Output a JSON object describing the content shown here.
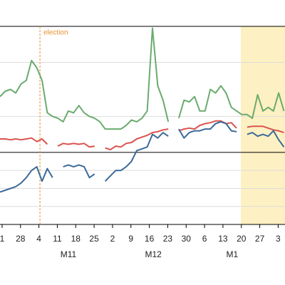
{
  "chart_data": {
    "type": "line",
    "annotation": "election",
    "annotation_x": 15.2,
    "shaded_span": [
      91.6,
      108.4
    ],
    "xlim": [
      0,
      108.4
    ],
    "ylim": [
      -4,
      7
    ],
    "zero_line": 0,
    "grid_lines": [
      -3,
      -2,
      -1,
      2,
      5
    ],
    "xticks": [
      {
        "value": 0.8,
        "label": "1"
      },
      {
        "value": 7.8,
        "label": "28"
      },
      {
        "value": 14.8,
        "label": "4"
      },
      {
        "value": 21.8,
        "label": "11"
      },
      {
        "value": 28.8,
        "label": "18"
      },
      {
        "value": 35.8,
        "label": "25"
      },
      {
        "value": 42.8,
        "label": "2"
      },
      {
        "value": 49.8,
        "label": "9"
      },
      {
        "value": 56.8,
        "label": "16"
      },
      {
        "value": 63.8,
        "label": "23"
      },
      {
        "value": 70.8,
        "label": "30"
      },
      {
        "value": 77.8,
        "label": "6"
      },
      {
        "value": 84.8,
        "label": "13"
      },
      {
        "value": 91.8,
        "label": "20"
      },
      {
        "value": 98.8,
        "label": "27"
      },
      {
        "value": 105.8,
        "label": "3"
      }
    ],
    "month_labels": [
      {
        "value": 26,
        "label": "M11"
      },
      {
        "value": 58.3,
        "label": "M12"
      },
      {
        "value": 88.3,
        "label": "M1"
      }
    ],
    "x": [
      0,
      2,
      4,
      6,
      8,
      10,
      12,
      14,
      16,
      18,
      20,
      22,
      24,
      26,
      28,
      30,
      32,
      34,
      36,
      38,
      40,
      42,
      44,
      46,
      48,
      50,
      52,
      54,
      56,
      58,
      60,
      62,
      64,
      66,
      68,
      70,
      72,
      74,
      76,
      78,
      80,
      82,
      84,
      86,
      88,
      90,
      92,
      94,
      96,
      98,
      100,
      102,
      104,
      106,
      108
    ],
    "series": [
      {
        "color": "#6aab6e",
        "values": [
          3.1,
          3.4,
          3.5,
          3.3,
          3.8,
          4.0,
          5.1,
          4.7,
          4.0,
          2.2,
          2.0,
          1.9,
          1.7,
          2.3,
          2.2,
          2.6,
          2.2,
          2.0,
          1.9,
          1.7,
          1.3,
          1.3,
          1.3,
          1.3,
          1.5,
          1.8,
          1.7,
          1.9,
          2.3,
          6.9,
          3.7,
          2.9,
          1.7,
          null,
          1.9,
          2.9,
          2.8,
          3.1,
          2.3,
          2.3,
          3.5,
          3.3,
          3.7,
          3.3,
          2.5,
          2.3,
          2.1,
          2.1,
          1.9,
          3.2,
          2.3,
          2.5,
          2.3,
          3.3,
          2.3
        ]
      },
      {
        "color": "#d9534f",
        "values": [
          0.75,
          0.75,
          0.7,
          0.75,
          0.7,
          0.75,
          0.8,
          0.6,
          0.75,
          0.45,
          null,
          0.35,
          0.5,
          0.45,
          0.5,
          0.45,
          0.5,
          0.3,
          0.35,
          null,
          0.25,
          0.15,
          0.35,
          0.3,
          0.5,
          0.55,
          0.75,
          0.85,
          0.95,
          1.1,
          1.15,
          1.25,
          1.3,
          null,
          1.2,
          1.3,
          1.35,
          1.3,
          1.5,
          1.6,
          1.65,
          1.75,
          1.75,
          1.6,
          1.65,
          1.35,
          null,
          1.4,
          1.45,
          1.45,
          1.45,
          1.35,
          1.25,
          1.2,
          1.1
        ]
      },
      {
        "color": "#3b6a99",
        "values": [
          -2.2,
          -2.1,
          -2.0,
          -1.9,
          -1.7,
          -1.4,
          -1.0,
          -0.8,
          -1.6,
          -0.9,
          -1.4,
          null,
          -0.8,
          -0.7,
          -0.8,
          -0.7,
          -0.8,
          -1.4,
          -1.2,
          null,
          -1.6,
          -1.3,
          -1.0,
          -1.0,
          -0.8,
          -0.5,
          0.1,
          0.2,
          0.3,
          1.0,
          0.8,
          1.1,
          0.9,
          null,
          1.3,
          0.8,
          1.1,
          1.2,
          1.2,
          1.3,
          1.3,
          1.6,
          1.7,
          1.6,
          1.2,
          1.15,
          null,
          1.0,
          1.1,
          0.9,
          1.0,
          0.9,
          1.2,
          0.7,
          0.3
        ]
      }
    ]
  }
}
